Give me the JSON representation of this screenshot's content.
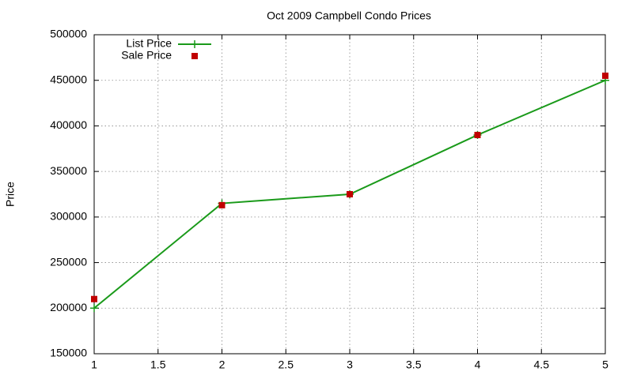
{
  "chart_data": {
    "type": "line",
    "title": "Oct 2009 Campbell Condo Prices",
    "y_label": "Price",
    "x": [
      1,
      2,
      3,
      4,
      5
    ],
    "series": [
      {
        "name": "List Price",
        "color": "#1a9a1a",
        "style": "linespoints",
        "values": [
          200000,
          315000,
          325000,
          390000,
          450000
        ]
      },
      {
        "name": "Sale Price",
        "color": "#c00000",
        "style": "points",
        "values": [
          210000,
          313000,
          325000,
          390000,
          455000
        ]
      }
    ],
    "xlim": [
      1,
      5
    ],
    "xticks": [
      1,
      1.5,
      2,
      2.5,
      3,
      3.5,
      4,
      4.5,
      5
    ],
    "ylim": [
      150000,
      500000
    ],
    "yticks": [
      150000,
      200000,
      250000,
      300000,
      350000,
      400000,
      450000,
      500000
    ],
    "grid": true,
    "legend": "top-left"
  }
}
